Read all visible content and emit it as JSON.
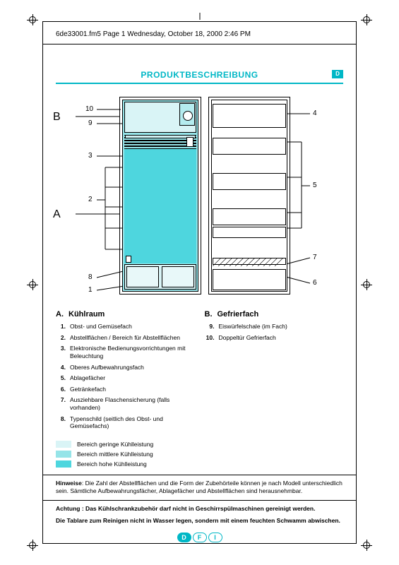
{
  "header": {
    "doc_info": "6de33001.fm5  Page 1  Wednesday, October 18, 2000  2:46 PM"
  },
  "title": {
    "text": "PRODUKTBESCHREIBUNG",
    "badge": "D"
  },
  "diagram": {
    "labels": {
      "A": "A",
      "B": "B"
    },
    "callouts": [
      "1",
      "2",
      "3",
      "4",
      "5",
      "6",
      "7",
      "8",
      "9",
      "10"
    ]
  },
  "columns": {
    "left": {
      "letter": "A.",
      "heading": "Kühlraum",
      "items": [
        {
          "n": "1.",
          "t": "Obst- und Gemüsefach"
        },
        {
          "n": "2.",
          "t": "Abstellflächen / Bereich für Abstellflächen"
        },
        {
          "n": "3.",
          "t": "Elektronische Bedienungsvorrichtungen mit Beleuchtung"
        },
        {
          "n": "4.",
          "t": "Oberes Aufbewahrungsfach"
        },
        {
          "n": "5.",
          "t": "Ablagefächer"
        },
        {
          "n": "6.",
          "t": "Getränkefach"
        },
        {
          "n": "7.",
          "t": "Ausziehbare Flaschensicherung (falls vorhanden)"
        },
        {
          "n": "8.",
          "t": "Typenschild (seitlich des Obst- und Gemüsefachs)"
        }
      ]
    },
    "right": {
      "letter": "B.",
      "heading": "Gefrierfach",
      "items": [
        {
          "n": "9.",
          "t": "Eiswürfelschale (im Fach)"
        },
        {
          "n": "10.",
          "t": "Doppeltür Gefrierfach"
        }
      ]
    }
  },
  "legend": {
    "rows": [
      {
        "color": "#d9f4f6",
        "label": "Bereich geringe Kühlleistung"
      },
      {
        "color": "#96e4e8",
        "label": "Bereich mittlere Kühlleistung"
      },
      {
        "color": "#4ed6de",
        "label": "Bereich hohe Kühlleistung"
      }
    ]
  },
  "notes": {
    "n1_label": "Hinweise",
    "n1_text": ": Die Zahl der Abstellflächen und die Form der Zubehörteile können je nach Modell unterschiedlich sein. Sämtliche Aufbewahrungsfächer, Ablagefächer und Abstellflächen sind herausnehmbar.",
    "n2": "Achtung : Das Kühlschrankzubehör darf nicht in Geschirrspülmaschinen gereinigt werden.",
    "n3": "Die Tablare zum Reinigen nicht in Wasser legen, sondern mit einem feuchten Schwamm abwischen."
  },
  "footer": {
    "pills": [
      "D",
      "F",
      "I"
    ],
    "active": 0
  },
  "colors": {
    "accent": "#00b7c6",
    "zone_low": "#d9f4f6",
    "zone_mid": "#96e4e8",
    "zone_high": "#4ed6de"
  }
}
